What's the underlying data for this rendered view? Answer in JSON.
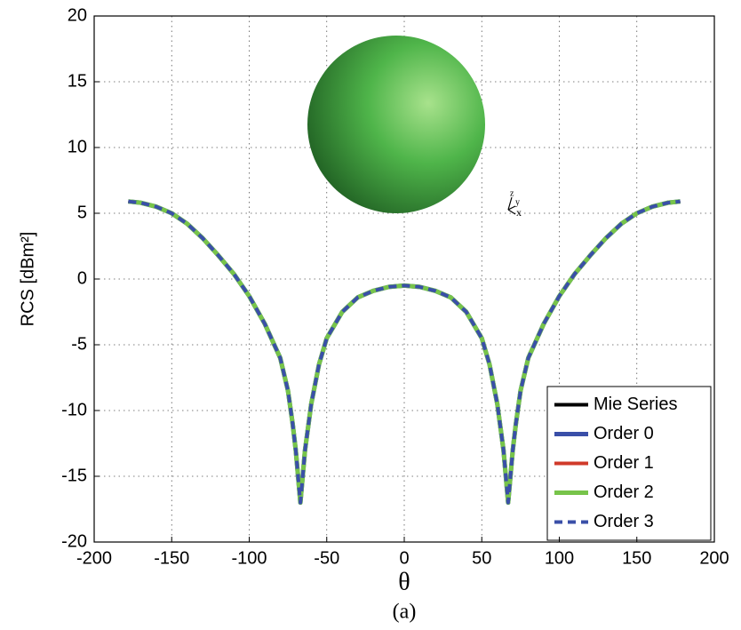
{
  "chart_data": {
    "type": "line",
    "xlabel": "θ",
    "ylabel": "RCS [dBm²]",
    "caption": "(a)",
    "annotations": [
      "z",
      "y",
      "x"
    ],
    "x": [
      -178,
      -170,
      -160,
      -150,
      -140,
      -130,
      -120,
      -110,
      -100,
      -90,
      -80,
      -75,
      -72,
      -70,
      -67,
      -64,
      -60,
      -55,
      -50,
      -40,
      -30,
      -20,
      -10,
      0,
      10,
      20,
      30,
      40,
      50,
      55,
      60,
      64,
      67,
      70,
      72,
      75,
      80,
      90,
      100,
      110,
      120,
      130,
      140,
      150,
      160,
      170,
      178
    ],
    "series": [
      {
        "name": "Mie Series",
        "color": "#000000",
        "width": 4,
        "dash": false,
        "values": [
          5.9,
          5.8,
          5.5,
          5.0,
          4.2,
          3.1,
          1.8,
          0.4,
          -1.3,
          -3.4,
          -6.0,
          -8.5,
          -11,
          -13,
          -17,
          -13,
          -9.5,
          -6.5,
          -4.5,
          -2.5,
          -1.4,
          -0.9,
          -0.6,
          -0.5,
          -0.6,
          -0.9,
          -1.4,
          -2.5,
          -4.5,
          -6.5,
          -9.5,
          -13,
          -17,
          -13,
          -11,
          -8.5,
          -6.0,
          -3.4,
          -1.3,
          0.4,
          1.8,
          3.1,
          4.2,
          5.0,
          5.5,
          5.8,
          5.9
        ]
      },
      {
        "name": "Order 0",
        "color": "#3a4fa8",
        "width": 5,
        "dash": false,
        "values": [
          5.9,
          5.8,
          5.5,
          5.0,
          4.2,
          3.1,
          1.8,
          0.4,
          -1.3,
          -3.4,
          -6.0,
          -8.5,
          -11,
          -13,
          -17,
          -13,
          -9.5,
          -6.5,
          -4.5,
          -2.5,
          -1.4,
          -0.9,
          -0.6,
          -0.5,
          -0.6,
          -0.9,
          -1.4,
          -2.5,
          -4.5,
          -6.5,
          -9.5,
          -13,
          -17,
          -13,
          -11,
          -8.5,
          -6.0,
          -3.4,
          -1.3,
          0.4,
          1.8,
          3.1,
          4.2,
          5.0,
          5.5,
          5.8,
          5.9
        ]
      },
      {
        "name": "Order 1",
        "color": "#d03a2a",
        "width": 4,
        "dash": false,
        "values": [
          5.9,
          5.8,
          5.5,
          5.0,
          4.2,
          3.1,
          1.8,
          0.4,
          -1.3,
          -3.4,
          -6.0,
          -8.5,
          -11,
          -13,
          -17,
          -13,
          -9.5,
          -6.5,
          -4.5,
          -2.5,
          -1.4,
          -0.9,
          -0.6,
          -0.5,
          -0.6,
          -0.9,
          -1.4,
          -2.5,
          -4.5,
          -6.5,
          -9.5,
          -13,
          -17,
          -13,
          -11,
          -8.5,
          -6.0,
          -3.4,
          -1.3,
          0.4,
          1.8,
          3.1,
          4.2,
          5.0,
          5.5,
          5.8,
          5.9
        ]
      },
      {
        "name": "Order 2",
        "color": "#77c44a",
        "width": 5,
        "dash": false,
        "values": [
          5.9,
          5.8,
          5.5,
          5.0,
          4.2,
          3.1,
          1.8,
          0.4,
          -1.3,
          -3.4,
          -6.0,
          -8.5,
          -11,
          -13,
          -17,
          -13,
          -9.5,
          -6.5,
          -4.5,
          -2.5,
          -1.4,
          -0.9,
          -0.6,
          -0.5,
          -0.6,
          -0.9,
          -1.4,
          -2.5,
          -4.5,
          -6.5,
          -9.5,
          -13,
          -17,
          -13,
          -11,
          -8.5,
          -6.0,
          -3.4,
          -1.3,
          0.4,
          1.8,
          3.1,
          4.2,
          5.0,
          5.5,
          5.8,
          5.9
        ]
      },
      {
        "name": "Order 3",
        "color": "#3a4fa8",
        "width": 4,
        "dash": true,
        "values": [
          5.9,
          5.8,
          5.5,
          5.0,
          4.2,
          3.1,
          1.8,
          0.4,
          -1.3,
          -3.4,
          -6.0,
          -8.5,
          -11,
          -13,
          -17,
          -13,
          -9.5,
          -6.5,
          -4.5,
          -2.5,
          -1.4,
          -0.9,
          -0.6,
          -0.5,
          -0.6,
          -0.9,
          -1.4,
          -2.5,
          -4.5,
          -6.5,
          -9.5,
          -13,
          -17,
          -13,
          -11,
          -8.5,
          -6.0,
          -3.4,
          -1.3,
          0.4,
          1.8,
          3.1,
          4.2,
          5.0,
          5.5,
          5.8,
          5.9
        ]
      }
    ],
    "xlim": [
      -200,
      200
    ],
    "xticks": [
      -200,
      -150,
      -100,
      -50,
      0,
      50,
      100,
      150,
      200
    ],
    "ylim": [
      -20,
      20
    ],
    "yticks": [
      -20,
      -15,
      -10,
      -5,
      0,
      5,
      10,
      15,
      20
    ],
    "grid": true,
    "legend": "lower right"
  }
}
